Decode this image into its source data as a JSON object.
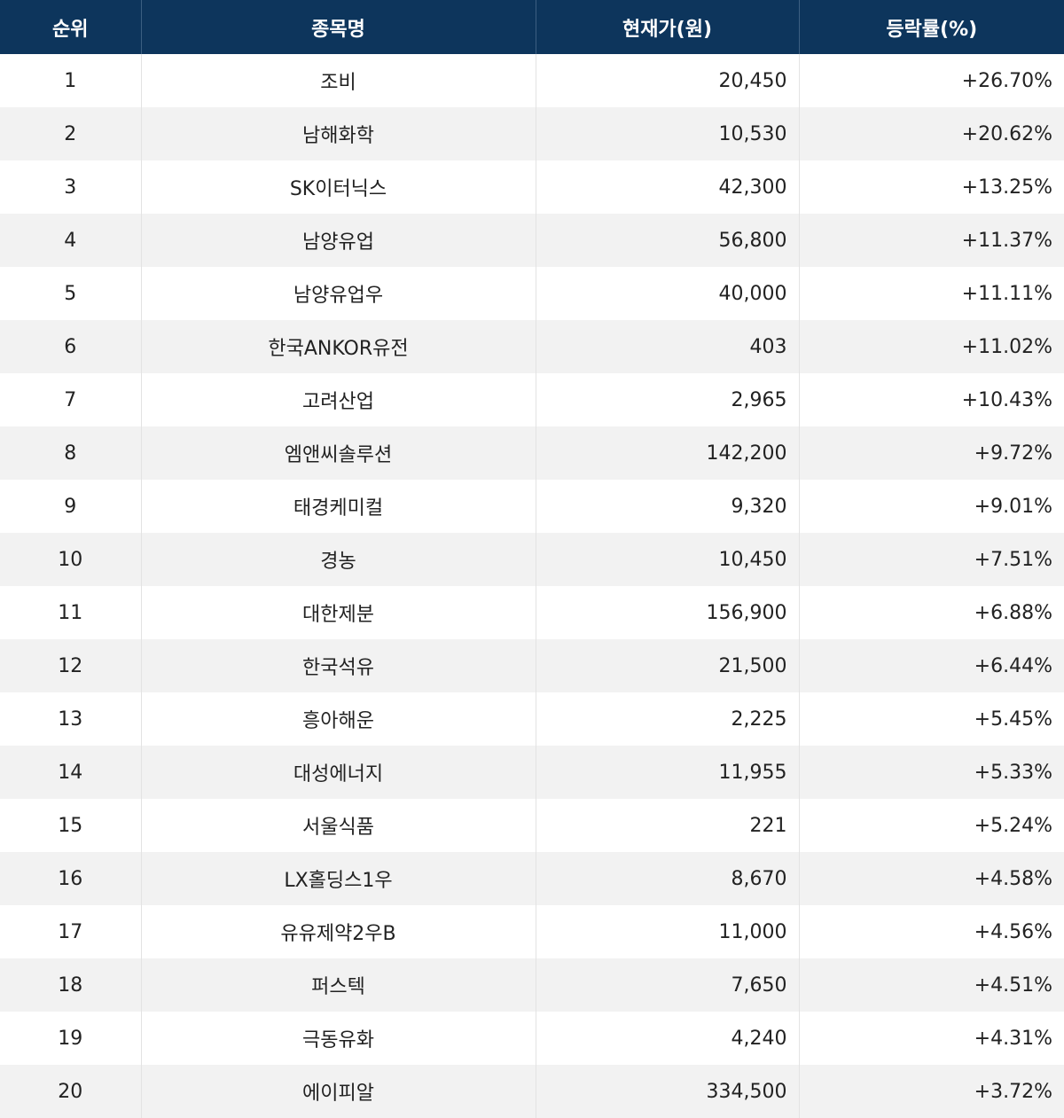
{
  "table": {
    "headers": {
      "rank": "순위",
      "name": "종목명",
      "price": "현재가(원)",
      "change": "등락률(%)"
    },
    "rows": [
      {
        "rank": "1",
        "name": "조비",
        "price": "20,450",
        "change": "+26.70%"
      },
      {
        "rank": "2",
        "name": "남해화학",
        "price": "10,530",
        "change": "+20.62%"
      },
      {
        "rank": "3",
        "name": "SK이터닉스",
        "price": "42,300",
        "change": "+13.25%"
      },
      {
        "rank": "4",
        "name": "남양유업",
        "price": "56,800",
        "change": "+11.37%"
      },
      {
        "rank": "5",
        "name": "남양유업우",
        "price": "40,000",
        "change": "+11.11%"
      },
      {
        "rank": "6",
        "name": "한국ANKOR유전",
        "price": "403",
        "change": "+11.02%"
      },
      {
        "rank": "7",
        "name": "고려산업",
        "price": "2,965",
        "change": "+10.43%"
      },
      {
        "rank": "8",
        "name": "엠앤씨솔루션",
        "price": "142,200",
        "change": "+9.72%"
      },
      {
        "rank": "9",
        "name": "태경케미컬",
        "price": "9,320",
        "change": "+9.01%"
      },
      {
        "rank": "10",
        "name": "경농",
        "price": "10,450",
        "change": "+7.51%"
      },
      {
        "rank": "11",
        "name": "대한제분",
        "price": "156,900",
        "change": "+6.88%"
      },
      {
        "rank": "12",
        "name": "한국석유",
        "price": "21,500",
        "change": "+6.44%"
      },
      {
        "rank": "13",
        "name": "흥아해운",
        "price": "2,225",
        "change": "+5.45%"
      },
      {
        "rank": "14",
        "name": "대성에너지",
        "price": "11,955",
        "change": "+5.33%"
      },
      {
        "rank": "15",
        "name": "서울식품",
        "price": "221",
        "change": "+5.24%"
      },
      {
        "rank": "16",
        "name": "LX홀딩스1우",
        "price": "8,670",
        "change": "+4.58%"
      },
      {
        "rank": "17",
        "name": "유유제약2우B",
        "price": "11,000",
        "change": "+4.56%"
      },
      {
        "rank": "18",
        "name": "퍼스텍",
        "price": "7,650",
        "change": "+4.51%"
      },
      {
        "rank": "19",
        "name": "극동유화",
        "price": "4,240",
        "change": "+4.31%"
      },
      {
        "rank": "20",
        "name": "에이피알",
        "price": "334,500",
        "change": "+3.72%"
      }
    ]
  },
  "colors": {
    "header_bg": "#0d355c",
    "header_text": "#ffffff",
    "row_alt_bg": "#f2f2f2",
    "text": "#222222"
  }
}
